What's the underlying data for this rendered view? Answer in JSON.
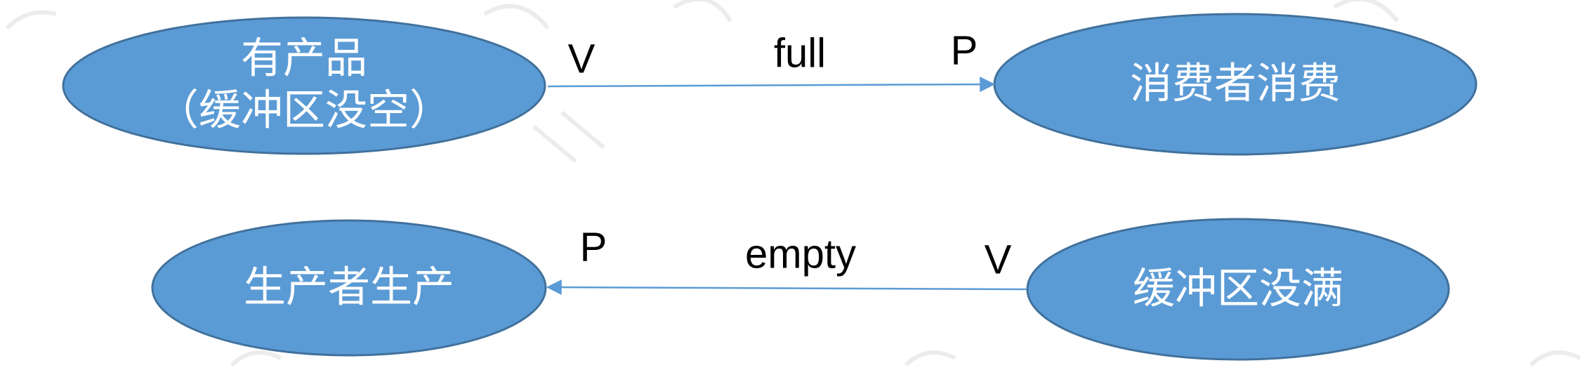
{
  "diagram": {
    "nodes": {
      "has_product": {
        "line1": "有产品",
        "line2": "（缓冲区没空）"
      },
      "consumer_consumes": {
        "label": "消费者消费"
      },
      "producer_produces": {
        "label": "生产者生产"
      },
      "buffer_not_full": {
        "label": "缓冲区没满"
      }
    },
    "edges": {
      "full": {
        "label": "full",
        "source_op": "V",
        "target_op": "P"
      },
      "empty": {
        "label": "empty",
        "source_op": "V",
        "target_op": "P"
      }
    },
    "colors": {
      "node_fill": "#5b9bd5",
      "node_border": "#41719c",
      "node_text": "#ffffff",
      "edge": "#5b9bd5",
      "edge_text": "#000000"
    }
  }
}
